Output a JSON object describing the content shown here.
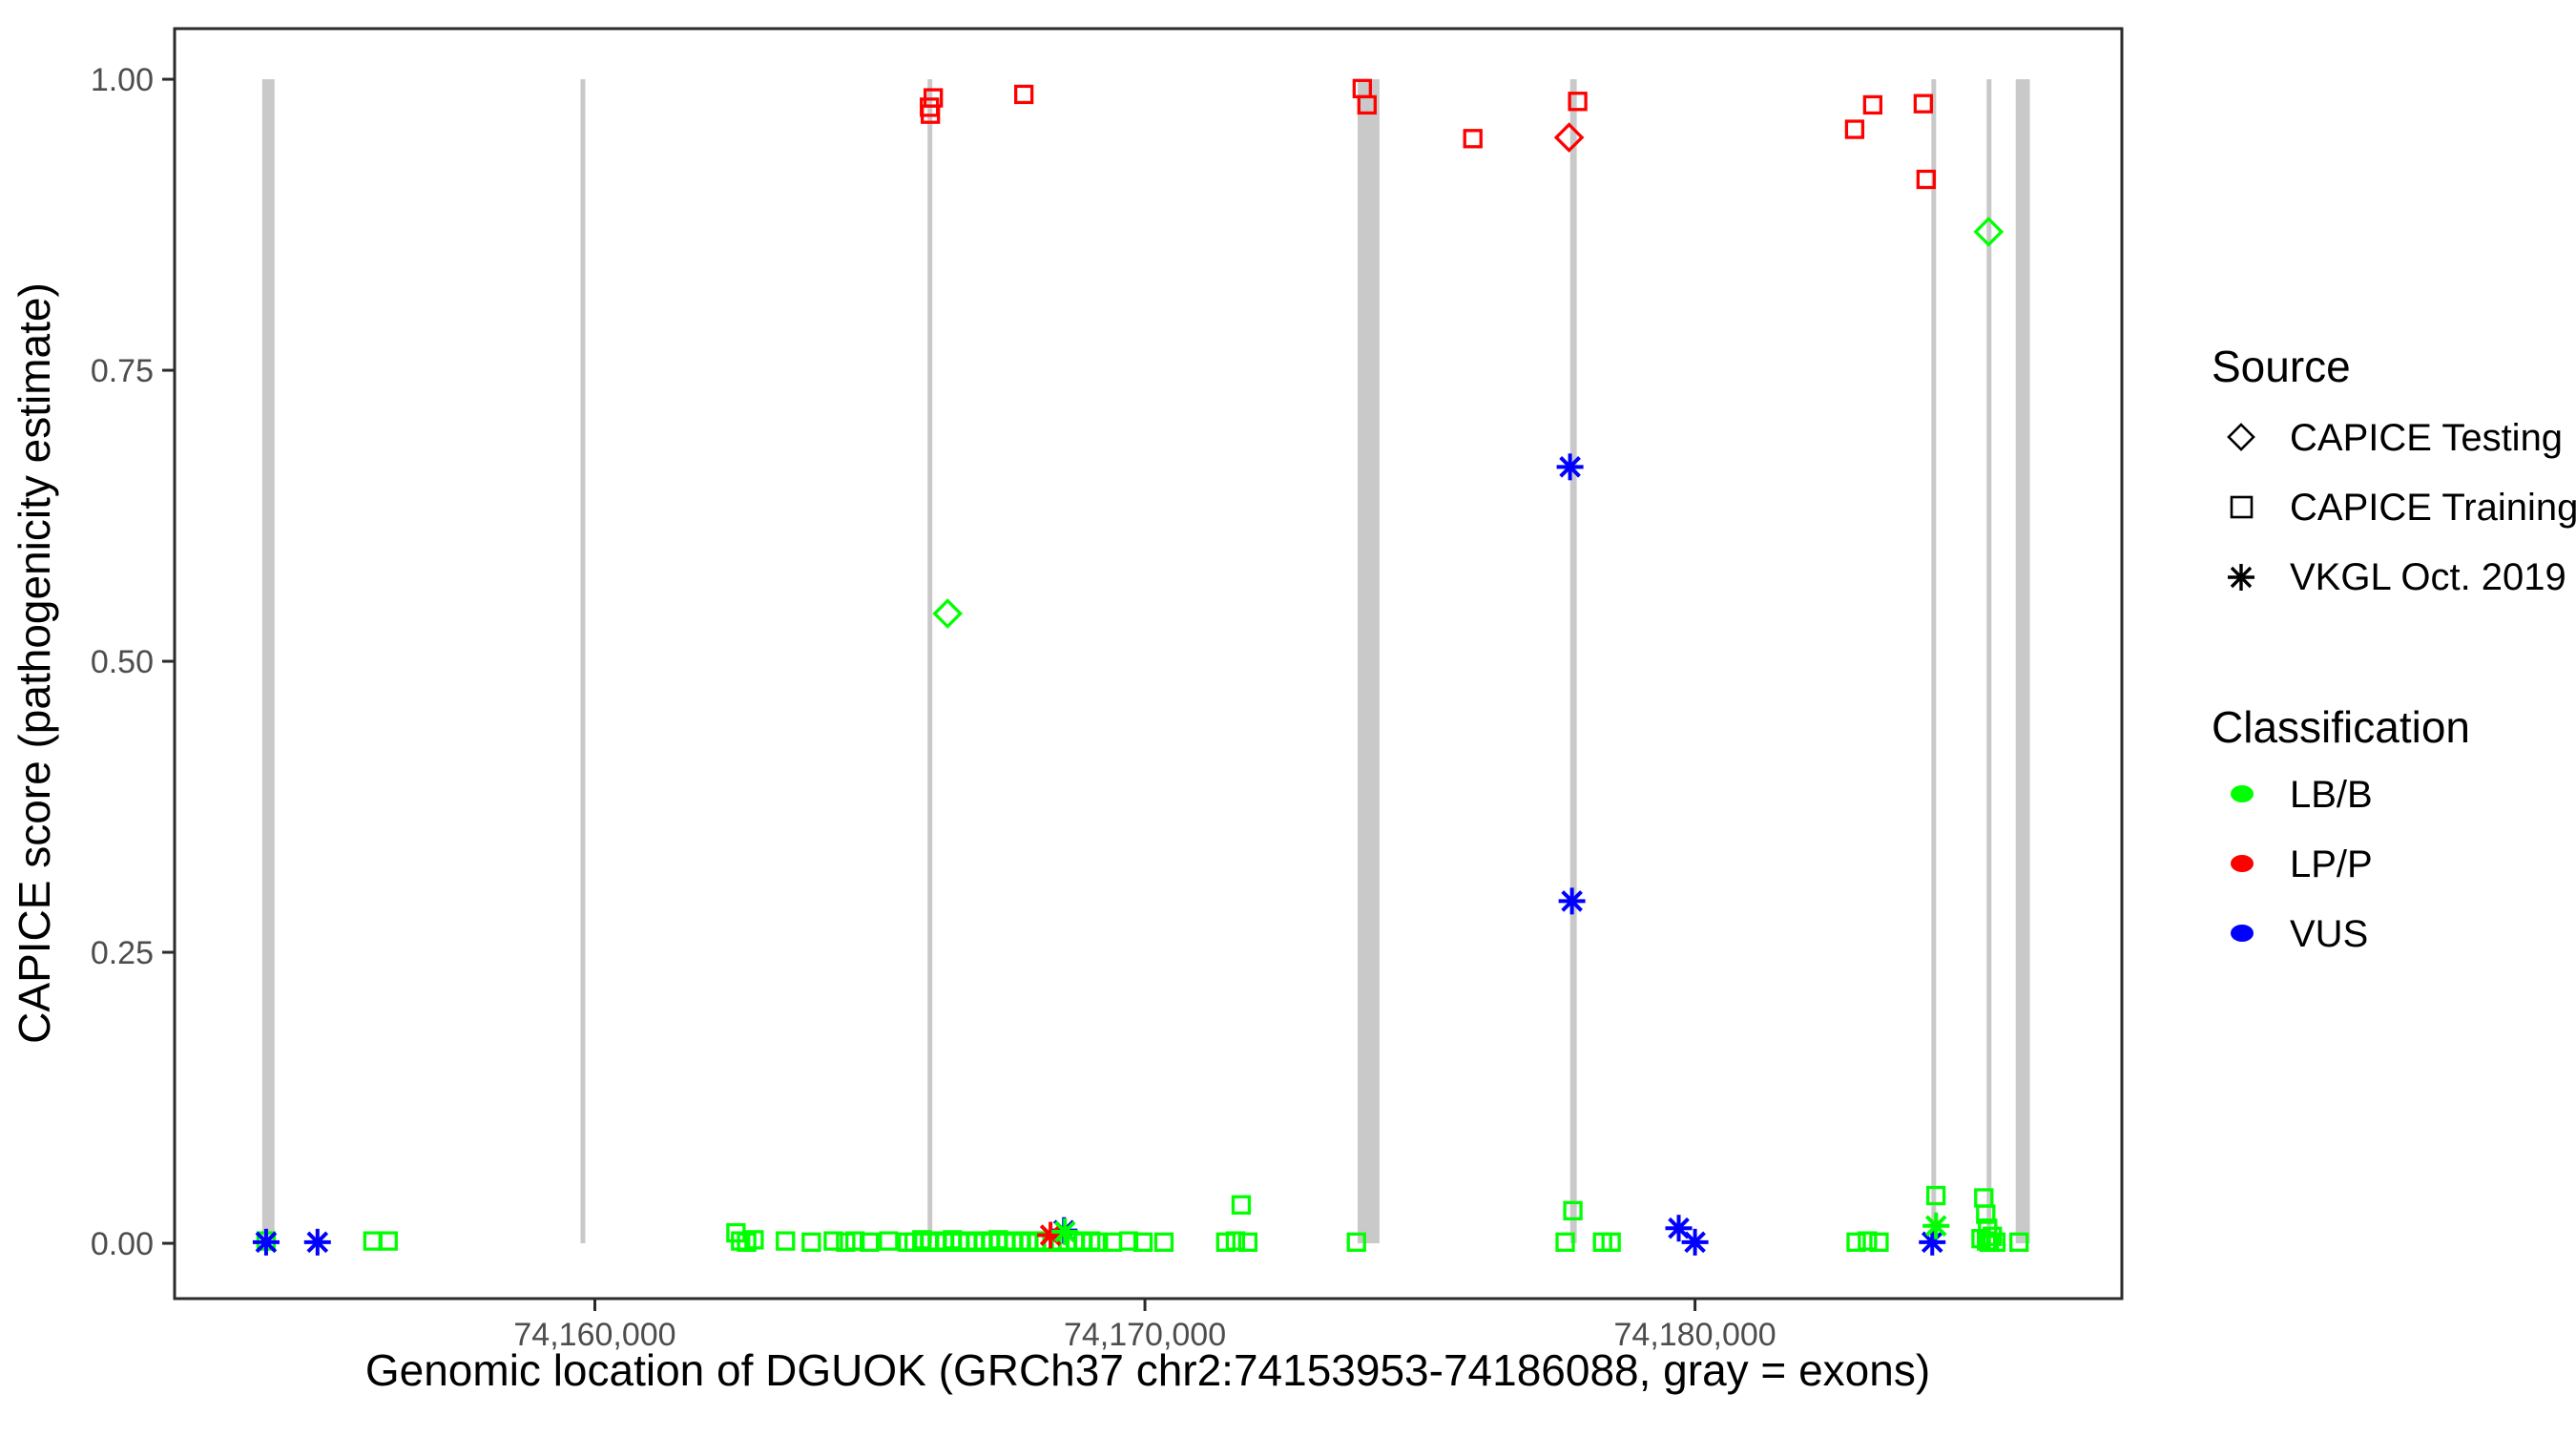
{
  "chart_data": {
    "type": "scatter",
    "xlabel": "Genomic location of DGUOK (GRCh37 chr2:74153953-74186088, gray = exons)",
    "ylabel": "CAPICE score (pathogenicity estimate)",
    "x_domain": [
      74152360,
      74187760
    ],
    "y_domain": [
      -0.0475,
      1.0435
    ],
    "x_ticks": [
      {
        "value": 74160000,
        "label": "74,160,000"
      },
      {
        "value": 74170000,
        "label": "74,170,000"
      },
      {
        "value": 74180000,
        "label": "74,180,000"
      }
    ],
    "y_ticks": [
      {
        "value": 0.0,
        "label": "0.00"
      },
      {
        "value": 0.25,
        "label": "0.25"
      },
      {
        "value": 0.5,
        "label": "0.50"
      },
      {
        "value": 0.75,
        "label": "0.75"
      },
      {
        "value": 1.0,
        "label": "1.00"
      }
    ],
    "grid": false,
    "exon_note": "gray vertical bars mark exons, drawn from score 0 to 1",
    "exons": [
      {
        "start": 74153952,
        "end": 74154177
      },
      {
        "start": 74159740,
        "end": 74159827
      },
      {
        "start": 74166049,
        "end": 74166135
      },
      {
        "start": 74173866,
        "end": 74174264
      },
      {
        "start": 74177730,
        "end": 74177850
      },
      {
        "start": 74184297,
        "end": 74184383
      },
      {
        "start": 74185302,
        "end": 74185389
      },
      {
        "start": 74185830,
        "end": 74186088
      }
    ],
    "series": [
      {
        "name": "CAPICE Training - LB/B",
        "source": "CAPICE Training",
        "classification": "LB/B",
        "marker": "square",
        "color": "#00ff00",
        "points": [
          [
            74154024,
            0.002
          ],
          [
            74155965,
            0.002
          ],
          [
            74156242,
            0.002
          ],
          [
            74162565,
            0.009
          ],
          [
            74162650,
            0.002
          ],
          [
            74162760,
            0.001
          ],
          [
            74162895,
            0.003
          ],
          [
            74163465,
            0.002
          ],
          [
            74163935,
            0.001
          ],
          [
            74164335,
            0.002
          ],
          [
            74164560,
            0.001
          ],
          [
            74164730,
            0.002
          ],
          [
            74164990,
            0.001
          ],
          [
            74165340,
            0.002
          ],
          [
            74165685,
            0.001
          ],
          [
            74165805,
            0.001
          ],
          [
            74165945,
            0.003
          ],
          [
            74166085,
            0.001
          ],
          [
            74166225,
            0.002
          ],
          [
            74166360,
            0.001
          ],
          [
            74166500,
            0.003
          ],
          [
            74166640,
            0.001
          ],
          [
            74166780,
            0.002
          ],
          [
            74166920,
            0.001
          ],
          [
            74167060,
            0.002
          ],
          [
            74167195,
            0.001
          ],
          [
            74167335,
            0.003
          ],
          [
            74167475,
            0.001
          ],
          [
            74167615,
            0.002
          ],
          [
            74167755,
            0.001
          ],
          [
            74167890,
            0.002
          ],
          [
            74168030,
            0.001
          ],
          [
            74168170,
            0.002
          ],
          [
            74168310,
            0.001
          ],
          [
            74168455,
            0.002
          ],
          [
            74168595,
            0.001
          ],
          [
            74168735,
            0.002
          ],
          [
            74168875,
            0.001
          ],
          [
            74169015,
            0.002
          ],
          [
            74169155,
            0.001
          ],
          [
            74169410,
            0.001
          ],
          [
            74169705,
            0.002
          ],
          [
            74169965,
            0.001
          ],
          [
            74170345,
            0.001
          ],
          [
            74171470,
            0.001
          ],
          [
            74171645,
            0.002
          ],
          [
            74171750,
            0.033
          ],
          [
            74171870,
            0.001
          ],
          [
            74173845,
            0.001
          ],
          [
            74177640,
            0.001
          ],
          [
            74177780,
            0.028
          ],
          [
            74178320,
            0.001
          ],
          [
            74178475,
            0.001
          ],
          [
            74182930,
            0.001
          ],
          [
            74183135,
            0.002
          ],
          [
            74183345,
            0.001
          ],
          [
            74184380,
            0.041
          ],
          [
            74185200,
            0.004
          ],
          [
            74185250,
            0.039
          ],
          [
            74185285,
            0.025
          ],
          [
            74185300,
            0.002
          ],
          [
            74185320,
            0.013
          ],
          [
            74185350,
            0.001
          ],
          [
            74185405,
            0.006
          ],
          [
            74185470,
            0.001
          ],
          [
            74185890,
            0.001
          ]
        ]
      },
      {
        "name": "CAPICE Training - LP/P",
        "source": "CAPICE Training",
        "classification": "LP/P",
        "marker": "square",
        "color": "#ff0000",
        "points": [
          [
            74166083,
            0.976
          ],
          [
            74166100,
            0.97
          ],
          [
            74166152,
            0.984
          ],
          [
            74167799,
            0.987
          ],
          [
            74173951,
            0.992
          ],
          [
            74174037,
            0.978
          ],
          [
            74175961,
            0.949
          ],
          [
            74177867,
            0.981
          ],
          [
            74182902,
            0.957
          ],
          [
            74183231,
            0.978
          ],
          [
            74184150,
            0.979
          ],
          [
            74184202,
            0.914
          ]
        ]
      },
      {
        "name": "CAPICE Testing - LB/B",
        "source": "CAPICE Testing",
        "classification": "LB/B",
        "marker": "diamond",
        "color": "#00ff00",
        "points": [
          [
            74166412,
            0.541
          ],
          [
            74185337,
            0.869
          ]
        ]
      },
      {
        "name": "CAPICE Testing - LP/P",
        "source": "CAPICE Testing",
        "classification": "LP/P",
        "marker": "diamond",
        "color": "#ff0000",
        "points": [
          [
            74177711,
            0.95
          ]
        ]
      },
      {
        "name": "VKGL Oct. 2019 - VUS",
        "source": "VKGL Oct. 2019",
        "classification": "VUS",
        "marker": "asterisk",
        "color": "#0000ff",
        "points": [
          [
            74154024,
            0.001
          ],
          [
            74154958,
            0.001
          ],
          [
            74168529,
            0.011
          ],
          [
            74177728,
            0.667
          ],
          [
            74177763,
            0.294
          ],
          [
            74179704,
            0.013
          ],
          [
            74180000,
            0.001
          ],
          [
            74184313,
            0.001
          ]
        ]
      },
      {
        "name": "VKGL Oct. 2019 - LP/P",
        "source": "VKGL Oct. 2019",
        "classification": "LP/P",
        "marker": "asterisk",
        "color": "#ff0000",
        "points": [
          [
            74168284,
            0.007
          ]
        ]
      },
      {
        "name": "VKGL Oct. 2019 - LB/B",
        "source": "VKGL Oct. 2019",
        "classification": "LB/B",
        "marker": "asterisk",
        "color": "#00ff00",
        "points": [
          [
            74168546,
            0.01
          ],
          [
            74184382,
            0.015
          ]
        ]
      }
    ]
  },
  "legend": {
    "source": {
      "title": "Source",
      "items": [
        {
          "icon": "diamond-icon",
          "label": "CAPICE Testing"
        },
        {
          "icon": "square-icon",
          "label": "CAPICE Training"
        },
        {
          "icon": "asterisk-icon",
          "label": "VKGL Oct. 2019"
        }
      ]
    },
    "classification": {
      "title": "Classification",
      "items": [
        {
          "icon": "circle-icon",
          "label": "LB/B",
          "color": "#00ff00"
        },
        {
          "icon": "circle-icon",
          "label": "LP/P",
          "color": "#ff0000"
        },
        {
          "icon": "circle-icon",
          "label": "VUS",
          "color": "#0000ff"
        }
      ]
    }
  },
  "colors": {
    "exon_bar": "#c9c9c9",
    "panel_border": "#2b2b2b",
    "tick": "#2b2b2b",
    "tick_label": "#4d4d4d"
  }
}
